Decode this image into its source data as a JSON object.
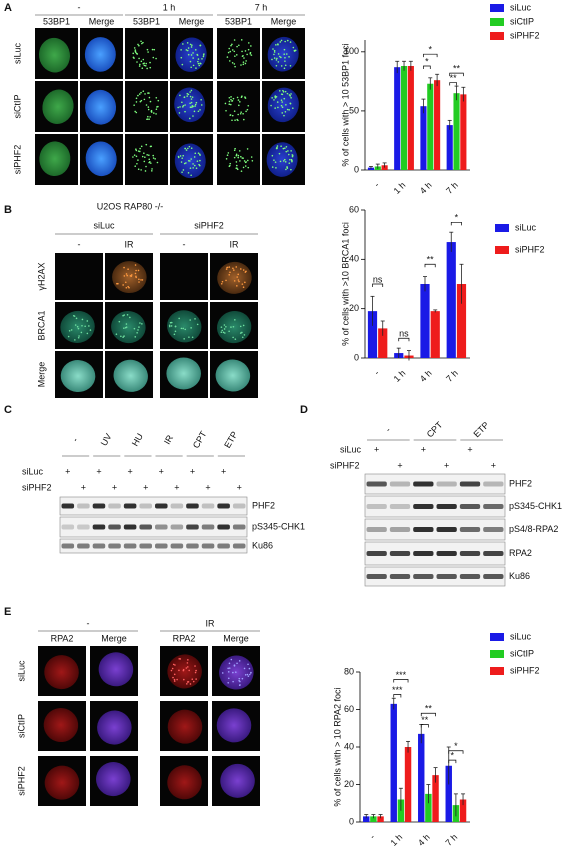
{
  "chart_data": [
    {
      "type": "bar",
      "ylabel": "% of cells with > 10 53BP1 foci",
      "categories": [
        "-",
        "1 h",
        "4 h",
        "7 h"
      ],
      "series": [
        {
          "name": "siLuc",
          "color": "#1a1ae6",
          "values": [
            2,
            87,
            54,
            38
          ],
          "errors": [
            1,
            5,
            6,
            4
          ]
        },
        {
          "name": "siCtIP",
          "color": "#22cc22",
          "values": [
            3,
            88,
            73,
            65
          ],
          "errors": [
            2,
            4,
            5,
            6
          ]
        },
        {
          "name": "siPHF2",
          "color": "#ee1c1c",
          "values": [
            4,
            88,
            76,
            64
          ],
          "errors": [
            2,
            4,
            5,
            6
          ]
        }
      ],
      "ylim": [
        0,
        110
      ],
      "yticks": [
        0,
        50,
        100
      ],
      "annotations": [
        "*",
        "*",
        "**",
        "**"
      ]
    },
    {
      "type": "bar",
      "ylabel": "% of cells with >10 BRCA1 foci",
      "categories": [
        "-",
        "1 h",
        "4 h",
        "7 h"
      ],
      "series": [
        {
          "name": "siLuc",
          "color": "#1a1ae6",
          "values": [
            19,
            2,
            30,
            47
          ],
          "errors": [
            6,
            2,
            3,
            4
          ]
        },
        {
          "name": "siPHF2",
          "color": "#ee1c1c",
          "values": [
            12,
            1,
            19,
            30
          ],
          "errors": [
            3,
            2,
            0.5,
            8
          ]
        }
      ],
      "ylim": [
        0,
        60
      ],
      "yticks": [
        0,
        20,
        40,
        60
      ],
      "annotations": [
        "ns",
        "ns",
        "**",
        "*"
      ]
    },
    {
      "type": "bar",
      "ylabel": "% of cells with > 10 RPA2 foci",
      "categories": [
        "-",
        "1 h",
        "4 h",
        "7 h"
      ],
      "series": [
        {
          "name": "siLuc",
          "color": "#1a1ae6",
          "values": [
            3,
            63,
            47,
            30
          ],
          "errors": [
            1,
            3,
            5,
            10
          ]
        },
        {
          "name": "siCtIP",
          "color": "#22cc22",
          "values": [
            3,
            12,
            15,
            9
          ],
          "errors": [
            1,
            6,
            5,
            6
          ]
        },
        {
          "name": "siPHF2",
          "color": "#ee1c1c",
          "values": [
            3,
            40,
            25,
            12
          ],
          "errors": [
            1,
            3,
            4,
            3
          ]
        }
      ],
      "ylim": [
        0,
        80
      ],
      "yticks": [
        0,
        20,
        40,
        60,
        80
      ],
      "annotations": [
        "***",
        "***",
        "**",
        "**",
        "*",
        "*"
      ]
    }
  ],
  "panels": {
    "a": {
      "letter": "A",
      "columns": [
        "-",
        "1 h",
        "7 h"
      ],
      "channels": [
        "53BP1",
        "Merge",
        "53BP1",
        "Merge",
        "53BP1",
        "Merge"
      ],
      "rows": [
        "siLuc",
        "siCtIP",
        "siPHF2"
      ]
    },
    "b": {
      "letter": "B",
      "title": "U2OS RAP80 -/-",
      "groups": [
        "siLuc",
        "siPHF2"
      ],
      "columns": [
        "-",
        "IR",
        "-",
        "IR"
      ],
      "rows": [
        "γH2AX",
        "BRCA1",
        "Merge"
      ]
    },
    "c": {
      "letter": "C",
      "treatments": [
        "-",
        "UV",
        "HU",
        "IR",
        "CPT",
        "ETP"
      ],
      "conditions": [
        "siLuc",
        "siPHF2"
      ],
      "sign": "+",
      "bands": [
        "PHF2",
        "pS345-CHK1",
        "Ku86"
      ]
    },
    "d": {
      "letter": "D",
      "treatments": [
        "-",
        "CPT",
        "ETP"
      ],
      "conditions": [
        "siLuc",
        "siPHF2"
      ],
      "sign": "+",
      "bands": [
        "PHF2",
        "pS345-CHK1",
        "pS4/8-RPA2",
        "RPA2",
        "Ku86"
      ]
    },
    "e": {
      "letter": "E",
      "columns": [
        "-",
        "IR"
      ],
      "channels": [
        "RPA2",
        "Merge",
        "RPA2",
        "Merge"
      ],
      "rows": [
        "siLuc",
        "siCtIP",
        "siPHF2"
      ]
    }
  }
}
